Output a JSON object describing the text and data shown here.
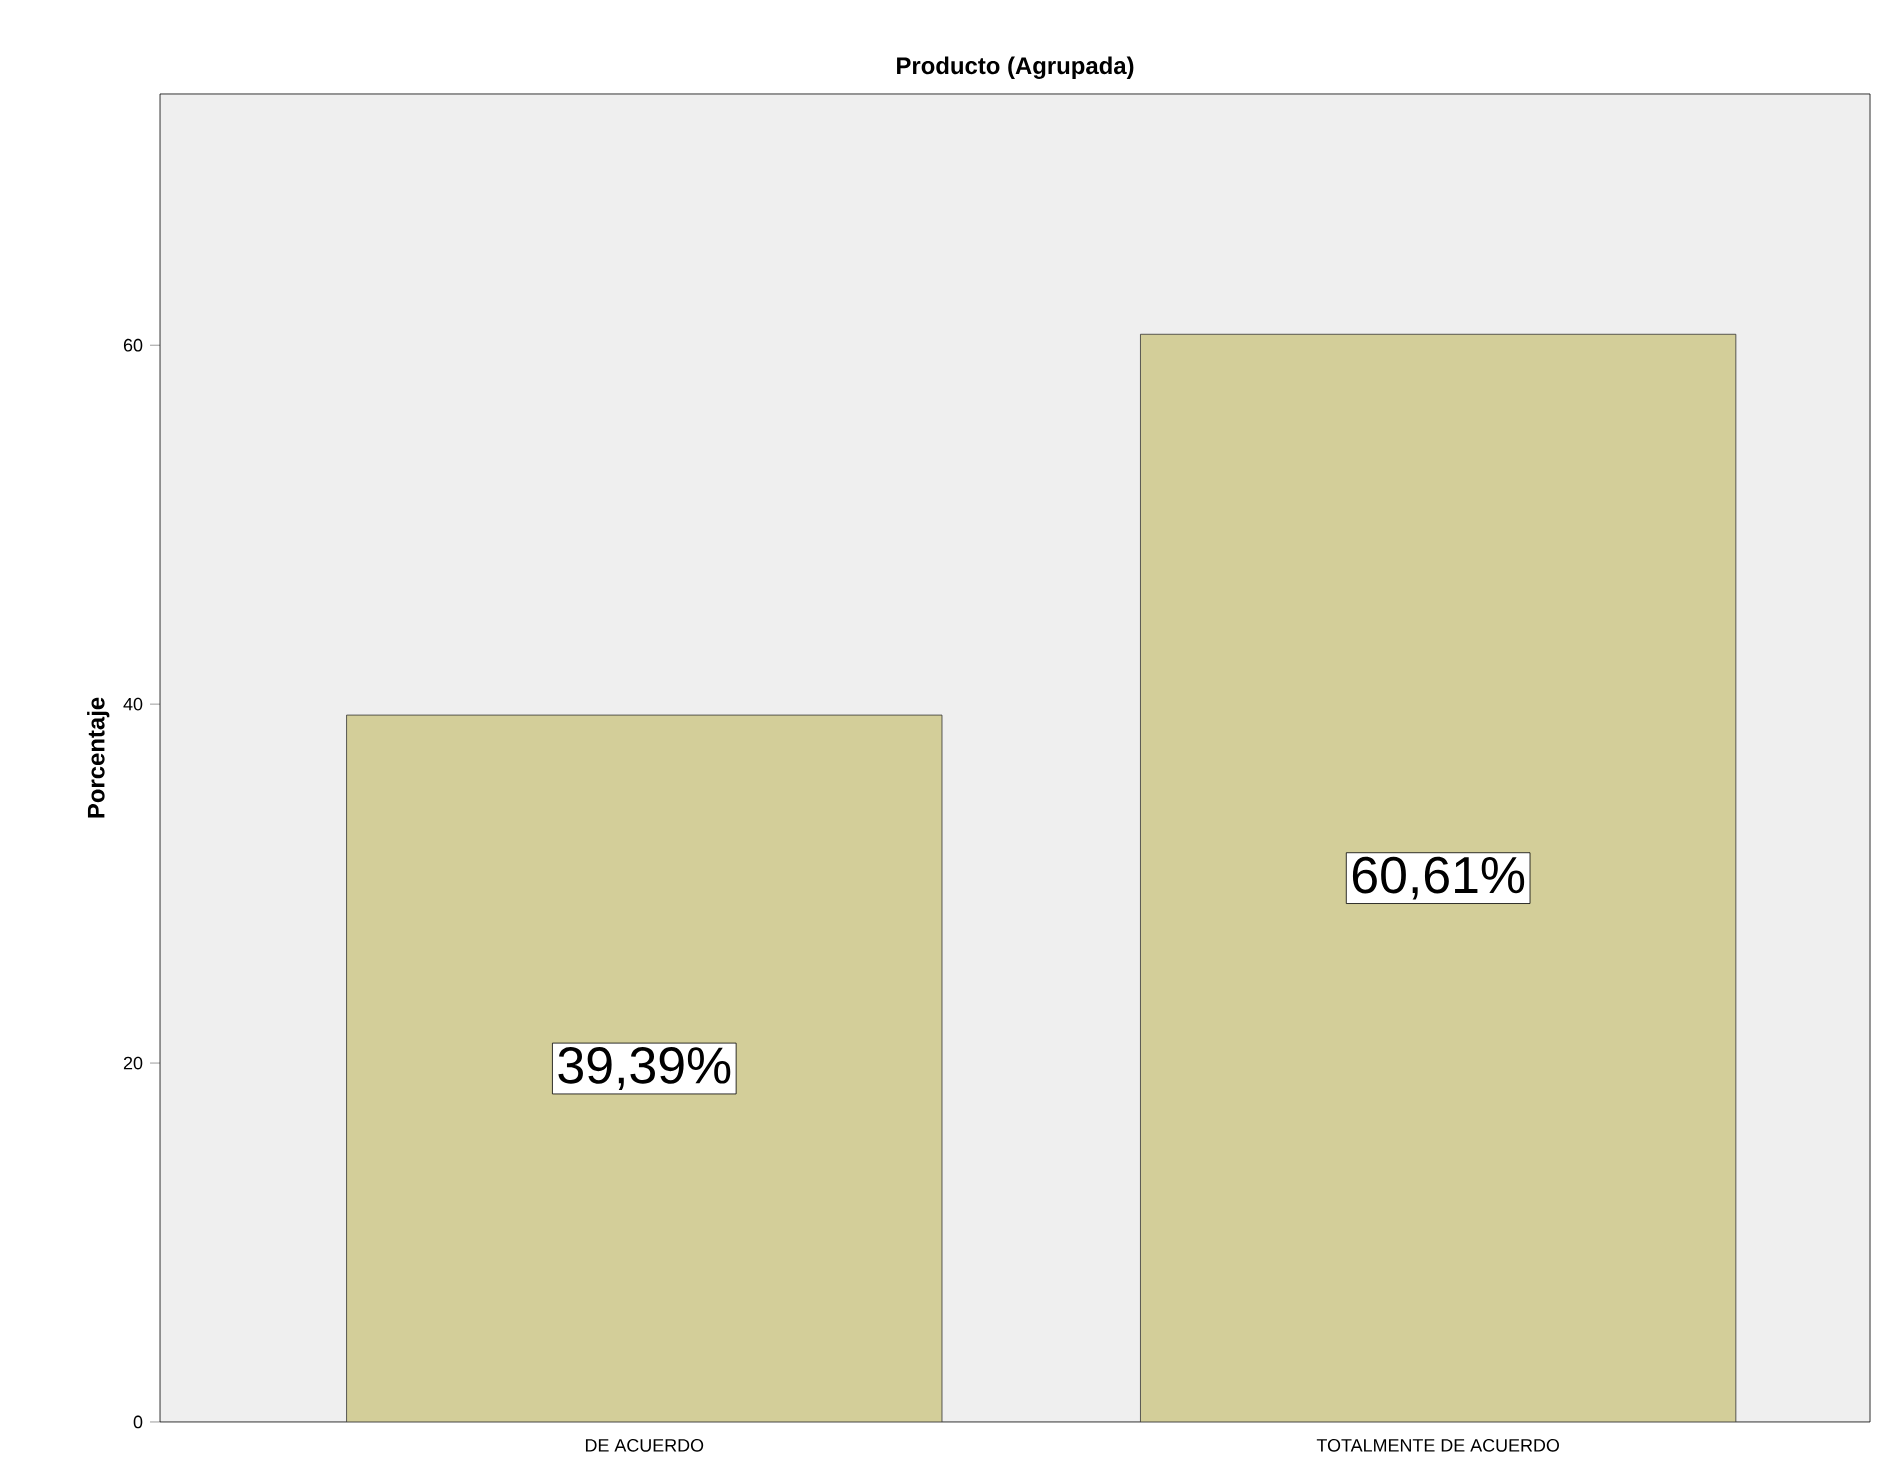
{
  "chart_data": {
    "type": "bar",
    "title": "Producto (Agrupada)",
    "ylabel": "Porcentaje",
    "categories": [
      "DE ACUERDO",
      "TOTALMENTE DE ACUERDO"
    ],
    "values": [
      39.39,
      60.61
    ],
    "color": "#d3ce99",
    "value_labels": [
      "39,39%",
      "60,61%"
    ],
    "ylim": [
      0,
      74
    ],
    "yticks": [
      0,
      20,
      40,
      60
    ]
  }
}
